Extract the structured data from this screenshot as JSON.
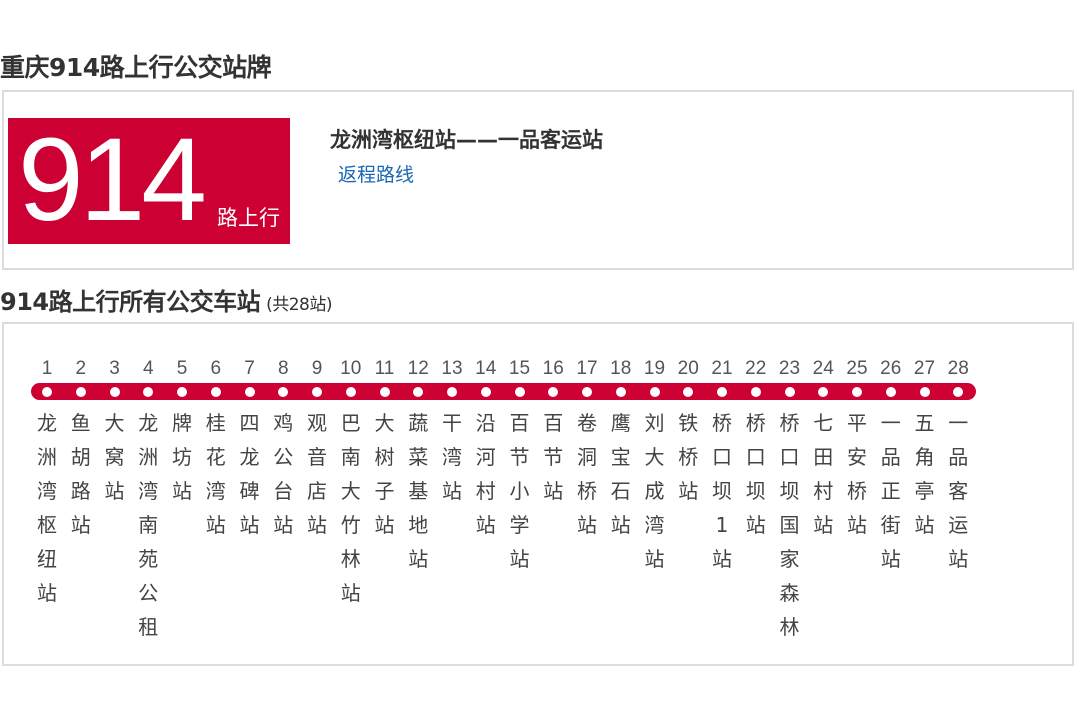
{
  "page_title": "重庆914路上行公交站牌",
  "route": {
    "number": "914",
    "direction": "路上行",
    "terminals": "龙洲湾枢纽站——一品客运站",
    "return_link": "返程路线"
  },
  "stops_section": {
    "title": "914路上行所有公交车站",
    "count": "(共28站)"
  },
  "colors": {
    "brand": "#cc0033",
    "link": "#1a66b3",
    "border": "#dcdcdc"
  },
  "stops": [
    {
      "num": "1",
      "name": "龙洲湾枢纽站"
    },
    {
      "num": "2",
      "name": "鱼胡路站"
    },
    {
      "num": "3",
      "name": "大窝站"
    },
    {
      "num": "4",
      "name": "龙洲湾南苑公租"
    },
    {
      "num": "5",
      "name": "牌坊站"
    },
    {
      "num": "6",
      "name": "桂花湾站"
    },
    {
      "num": "7",
      "name": "四龙碑站"
    },
    {
      "num": "8",
      "name": "鸡公台站"
    },
    {
      "num": "9",
      "name": "观音店站"
    },
    {
      "num": "10",
      "name": "巴南大竹林站"
    },
    {
      "num": "11",
      "name": "大树子站"
    },
    {
      "num": "12",
      "name": "蔬菜基地站"
    },
    {
      "num": "13",
      "name": "干湾站"
    },
    {
      "num": "14",
      "name": "沿河村站"
    },
    {
      "num": "15",
      "name": "百节小学站"
    },
    {
      "num": "16",
      "name": "百节站"
    },
    {
      "num": "17",
      "name": "卷洞桥站"
    },
    {
      "num": "18",
      "name": "鹰宝石站"
    },
    {
      "num": "19",
      "name": "刘大成湾站"
    },
    {
      "num": "20",
      "name": "铁桥站"
    },
    {
      "num": "21",
      "name": "桥口坝1站"
    },
    {
      "num": "22",
      "name": "桥口坝站"
    },
    {
      "num": "23",
      "name": "桥口坝国家森林"
    },
    {
      "num": "24",
      "name": "七田村站"
    },
    {
      "num": "25",
      "name": "平安桥站"
    },
    {
      "num": "26",
      "name": "一品正街站"
    },
    {
      "num": "27",
      "name": "五角亭站"
    },
    {
      "num": "28",
      "name": "一品客运站"
    }
  ]
}
